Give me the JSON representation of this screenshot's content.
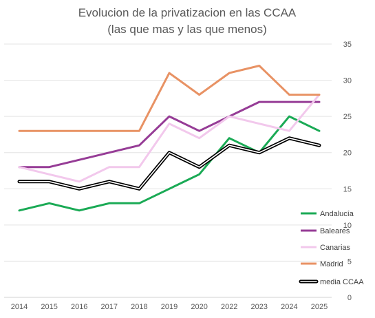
{
  "chart_data": {
    "type": "line",
    "title": "Evolucion de la privatizacion en las CCAA",
    "subtitle": "(las que mas y las que menos)",
    "xlabel": "",
    "ylabel": "",
    "categories": [
      "2014",
      "2015",
      "2016",
      "2017",
      "2018",
      "2019",
      "2020",
      "2022",
      "2023",
      "2024",
      "2025"
    ],
    "ylim": [
      0,
      35
    ],
    "yticks": [
      0,
      5,
      10,
      15,
      20,
      25,
      30,
      35
    ],
    "grid": true,
    "legend_position": "right",
    "series": [
      {
        "name": "Andalucía",
        "color": "#1aaa55",
        "style": "solid",
        "values": [
          12,
          13,
          12,
          13,
          13,
          15,
          17,
          22,
          20,
          25,
          23
        ]
      },
      {
        "name": "Baleares",
        "color": "#963c96",
        "style": "solid",
        "values": [
          18,
          18,
          19,
          20,
          21,
          25,
          23,
          25,
          27,
          27,
          27
        ]
      },
      {
        "name": "Canarias",
        "color": "#f2c8ec",
        "style": "solid",
        "values": [
          18,
          17,
          16,
          18,
          18,
          24,
          22,
          25,
          24,
          23,
          28
        ]
      },
      {
        "name": "Madrid",
        "color": "#e89264",
        "style": "solid",
        "values": [
          23,
          23,
          23,
          23,
          23,
          31,
          28,
          31,
          32,
          28,
          28
        ]
      },
      {
        "name": "media CCAA",
        "color": "#000000",
        "style": "double",
        "values": [
          16,
          16,
          15,
          16,
          15,
          20,
          18,
          21,
          20,
          22,
          21
        ]
      }
    ]
  }
}
